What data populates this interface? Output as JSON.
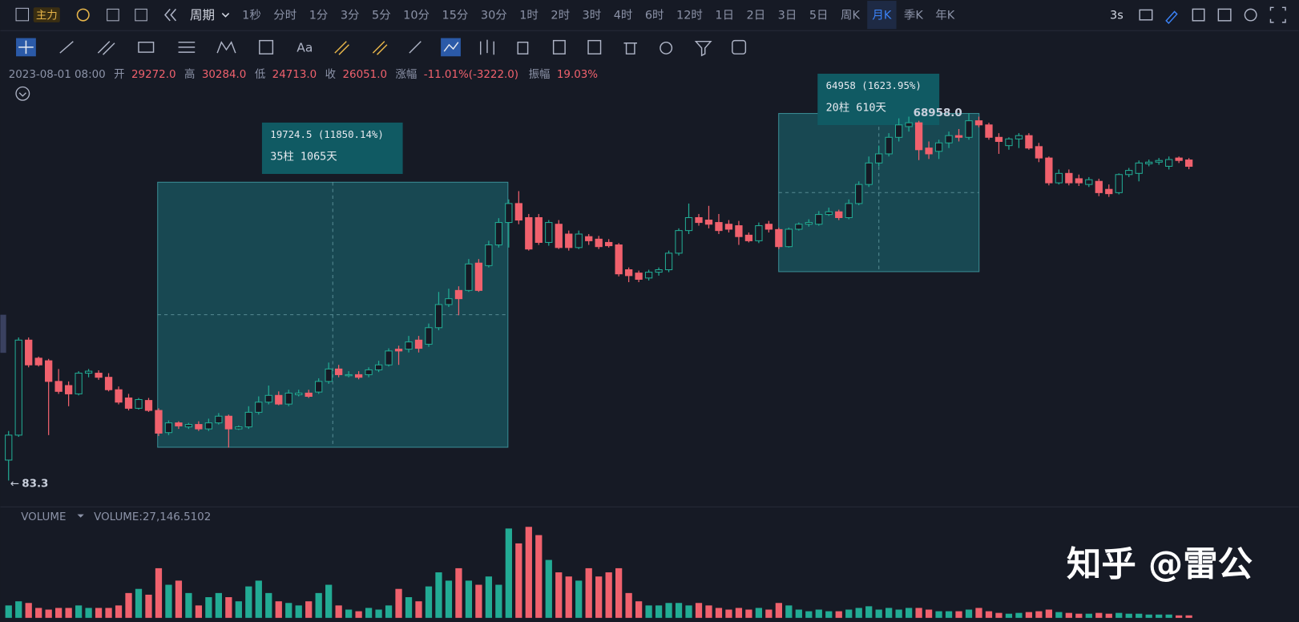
{
  "toolbar": {
    "main": "主力",
    "period": "周期",
    "intervals": [
      "1秒",
      "分时",
      "1分",
      "3分",
      "5分",
      "10分",
      "15分",
      "30分",
      "1时",
      "2时",
      "3时",
      "4时",
      "6时",
      "12时",
      "1日",
      "2日",
      "3日",
      "5日",
      "周K",
      "月K",
      "季K",
      "年K"
    ],
    "selected": "月K",
    "refresh": "3s"
  },
  "info": {
    "time": "2023-08-01 08:00",
    "open_label": "开",
    "open": "29272.0",
    "high_label": "高",
    "high": "30284.0",
    "low_label": "低",
    "low": "24713.0",
    "close_label": "收",
    "close": "26051.0",
    "change_label": "涨幅",
    "change": "-11.01%(-3222.0)",
    "amplitude_label": "振幅",
    "amplitude": "19.03%"
  },
  "chart_data": [
    {
      "type": "candlestick",
      "log_scale": true,
      "ylim": [
        53,
        120000
      ],
      "up_color": "#22ab94",
      "down_color": "#f0616d",
      "high_label": "68958.0",
      "low_label": "83.3",
      "measurements": [
        {
          "change": "19724.5 (11850.14%)",
          "span": "35柱 1065天"
        },
        {
          "change": "64958 (1623.95%)",
          "span": "20柱 610天"
        }
      ],
      "candles": [
        [
          121,
          206,
          83.3,
          191
        ],
        [
          191,
          1140,
          185,
          1086
        ],
        [
          1086,
          1140,
          660,
          690
        ],
        [
          780,
          803,
          670,
          690
        ],
        [
          744,
          770,
          191,
          510
        ],
        [
          510,
          640,
          406,
          425
        ],
        [
          473,
          510,
          324,
          406
        ],
        [
          406,
          615,
          395,
          593
        ],
        [
          593,
          640,
          550,
          615
        ],
        [
          593,
          625,
          525,
          550
        ],
        [
          550,
          593,
          425,
          438
        ],
        [
          438,
          465,
          335,
          349
        ],
        [
          377,
          406,
          300,
          312
        ],
        [
          312,
          377,
          305,
          366
        ],
        [
          360,
          377,
          292,
          300
        ],
        [
          300,
          312,
          188,
          198
        ],
        [
          200,
          250,
          191,
          239
        ],
        [
          239,
          246,
          214,
          226
        ],
        [
          222,
          239,
          214,
          232
        ],
        [
          232,
          246,
          206,
          214
        ],
        [
          214,
          258,
          206,
          239
        ],
        [
          239,
          286,
          232,
          270
        ],
        [
          270,
          278,
          152,
          214
        ],
        [
          214,
          228,
          210,
          222
        ],
        [
          222,
          324,
          214,
          290
        ],
        [
          290,
          388,
          278,
          349
        ],
        [
          349,
          473,
          335,
          395
        ],
        [
          395,
          425,
          330,
          337
        ],
        [
          337,
          438,
          324,
          412
        ],
        [
          400,
          438,
          388,
          412
        ],
        [
          412,
          438,
          377,
          388
        ],
        [
          420,
          540,
          406,
          510
        ],
        [
          510,
          720,
          488,
          640
        ],
        [
          640,
          690,
          550,
          577
        ],
        [
          566,
          615,
          550,
          577
        ],
        [
          577,
          615,
          530,
          550
        ],
        [
          577,
          660,
          550,
          630
        ],
        [
          630,
          744,
          605,
          690
        ],
        [
          690,
          934,
          670,
          890
        ],
        [
          920,
          980,
          690,
          890
        ],
        [
          920,
          1172,
          866,
          1050
        ],
        [
          1086,
          1172,
          866,
          934
        ],
        [
          1007,
          1470,
          960,
          1363
        ],
        [
          1363,
          2620,
          1300,
          2080
        ],
        [
          2080,
          2780,
          1990,
          2315
        ],
        [
          2693,
          2905,
          1710,
          2315
        ],
        [
          2693,
          4780,
          2620,
          4370
        ],
        [
          4440,
          4780,
          2620,
          2693
        ],
        [
          4241,
          6679,
          4100,
          6192
        ],
        [
          6192,
          10100,
          5900,
          9330
        ],
        [
          9330,
          14235,
          5900,
          13198
        ],
        [
          13198,
          16561,
          9040,
          9750
        ],
        [
          10200,
          10900,
          5580,
          5741
        ],
        [
          10200,
          10900,
          6192,
          6480
        ],
        [
          6480,
          9750,
          6100,
          9330
        ],
        [
          9040,
          9750,
          5741,
          5900
        ],
        [
          7550,
          8050,
          5580,
          5900
        ],
        [
          5900,
          8050,
          5741,
          7550
        ],
        [
          7204,
          7550,
          6192,
          6679
        ],
        [
          6880,
          7300,
          5741,
          6000
        ],
        [
          6480,
          6880,
          5900,
          6100
        ],
        [
          6192,
          6400,
          3480,
          3645
        ],
        [
          3932,
          4100,
          3133,
          3530
        ],
        [
          3700,
          3870,
          3133,
          3300
        ],
        [
          3380,
          3932,
          3230,
          3760
        ],
        [
          3760,
          4100,
          3530,
          3932
        ],
        [
          3932,
          5580,
          3760,
          5322
        ],
        [
          5322,
          8381,
          5100,
          8050
        ],
        [
          8050,
          13198,
          7550,
          10200
        ],
        [
          10200,
          10900,
          8800,
          9330
        ],
        [
          9750,
          12650,
          8381,
          9040
        ],
        [
          9330,
          10900,
          7550,
          8050
        ],
        [
          9040,
          9750,
          7770,
          8250
        ],
        [
          8800,
          9600,
          6192,
          7204
        ],
        [
          7400,
          7770,
          6480,
          6679
        ],
        [
          6679,
          9330,
          6400,
          8800
        ],
        [
          9040,
          9600,
          7770,
          8250
        ],
        [
          8200,
          8500,
          5741,
          6000
        ],
        [
          6000,
          8500,
          5900,
          8250
        ],
        [
          8250,
          9330,
          8050,
          9040
        ],
        [
          9040,
          9900,
          8650,
          9330
        ],
        [
          9040,
          11500,
          8800,
          10800
        ],
        [
          10800,
          12236,
          10517,
          11344
        ],
        [
          11344,
          11800,
          9750,
          10200
        ],
        [
          10200,
          14235,
          9900,
          13198
        ],
        [
          13198,
          19800,
          12800,
          18700
        ],
        [
          18700,
          31200,
          17864,
          27700
        ],
        [
          27700,
          38078,
          26081,
          32729
        ],
        [
          32729,
          47784,
          31200,
          44301
        ],
        [
          44301,
          62700,
          41072,
          55594
        ],
        [
          53900,
          64679,
          49200,
          57800
        ],
        [
          57800,
          59965,
          29200,
          35303
        ],
        [
          36400,
          41072,
          29800,
          32729
        ],
        [
          34300,
          42400,
          29800,
          40000
        ],
        [
          40000,
          49200,
          36400,
          45700
        ],
        [
          45700,
          51541,
          41072,
          44301
        ],
        [
          44301,
          68958,
          42400,
          59965
        ],
        [
          59965,
          64679,
          53200,
          55594
        ],
        [
          55594,
          57800,
          42400,
          44301
        ],
        [
          44301,
          47784,
          32729,
          41072
        ],
        [
          38078,
          44301,
          35303,
          43000
        ],
        [
          43000,
          47784,
          36400,
          45700
        ],
        [
          45700,
          47784,
          35303,
          36400
        ],
        [
          37400,
          40000,
          28132,
          30343
        ],
        [
          30343,
          31200,
          18400,
          19268
        ],
        [
          19268,
          24600,
          18700,
          22900
        ],
        [
          22900,
          24600,
          18400,
          19268
        ],
        [
          20783,
          22417,
          18200,
          19268
        ],
        [
          18700,
          21400,
          17864,
          20400
        ],
        [
          19800,
          20783,
          15100,
          16100
        ],
        [
          17100,
          18700,
          14900,
          15800
        ],
        [
          16100,
          22900,
          15600,
          22417
        ],
        [
          22417,
          25300,
          21400,
          24180
        ],
        [
          22900,
          29000,
          19800,
          27700
        ],
        [
          27300,
          29500,
          26081,
          28132
        ],
        [
          28132,
          30343,
          26800,
          29000
        ],
        [
          26081,
          31200,
          24600,
          29500
        ],
        [
          30343,
          31200,
          27700,
          29000
        ],
        [
          29272,
          30284,
          24713,
          26051
        ]
      ]
    },
    {
      "type": "bar",
      "name": "VOLUME",
      "readout": "VOLUME:27,146.5102",
      "ylim": [
        0,
        1000000
      ],
      "values": [
        135000,
        180000,
        162000,
        108000,
        90000,
        108000,
        108000,
        135000,
        108000,
        108000,
        108000,
        135000,
        270000,
        315000,
        252000,
        540000,
        360000,
        405000,
        270000,
        135000,
        225000,
        270000,
        225000,
        180000,
        342000,
        405000,
        270000,
        180000,
        162000,
        135000,
        180000,
        270000,
        360000,
        135000,
        90000,
        72000,
        108000,
        90000,
        135000,
        315000,
        225000,
        180000,
        342000,
        495000,
        405000,
        540000,
        405000,
        360000,
        450000,
        360000,
        972000,
        810000,
        990000,
        900000,
        630000,
        495000,
        450000,
        405000,
        540000,
        450000,
        495000,
        540000,
        270000,
        180000,
        135000,
        135000,
        162000,
        162000,
        135000,
        162000,
        135000,
        108000,
        90000,
        108000,
        90000,
        108000,
        90000,
        162000,
        135000,
        90000,
        72000,
        90000,
        72000,
        72000,
        90000,
        108000,
        126000,
        90000,
        108000,
        90000,
        108000,
        108000,
        90000,
        72000,
        72000,
        72000,
        90000,
        108000,
        72000,
        54000,
        45000,
        54000,
        63000,
        72000,
        90000,
        63000,
        54000,
        45000,
        45000,
        54000,
        45000,
        54000,
        45000,
        45000,
        36000,
        36000,
        36000,
        27000,
        27146.5102
      ]
    }
  ],
  "watermark": "知乎 @雷公"
}
